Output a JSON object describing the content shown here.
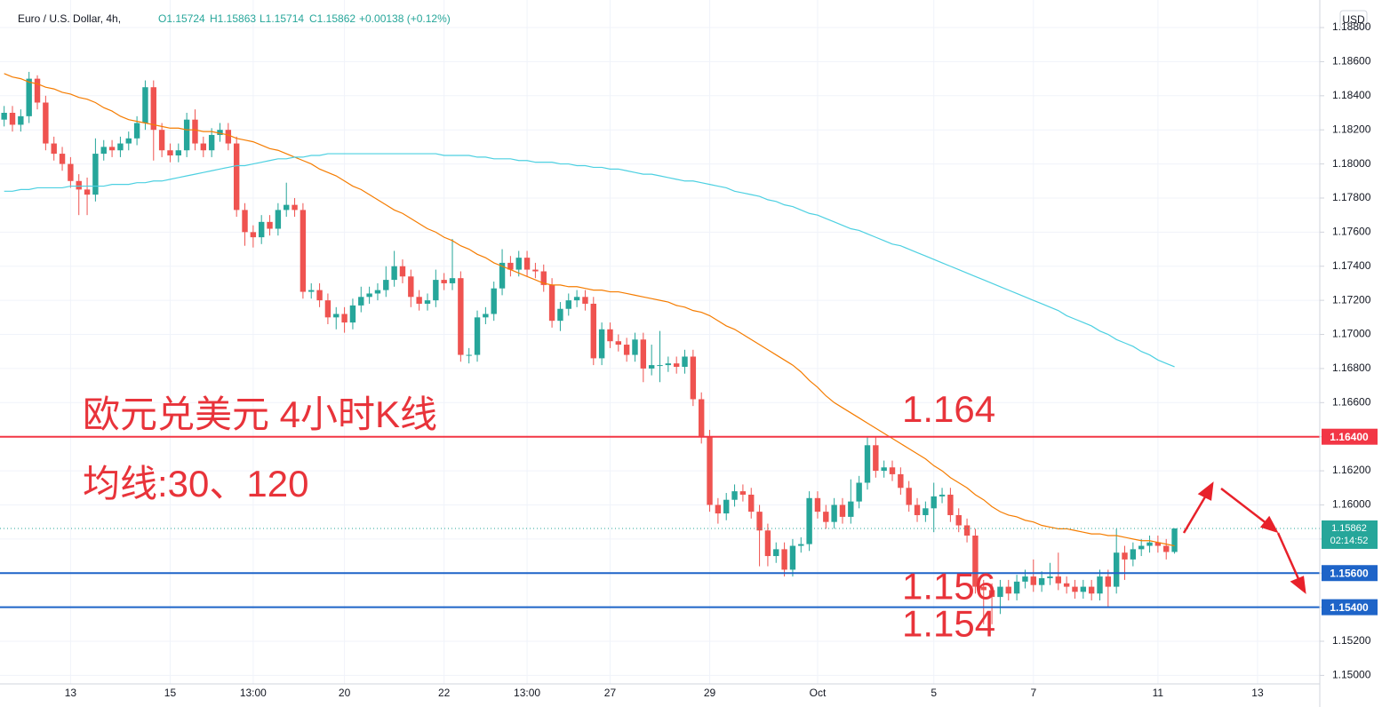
{
  "header": {
    "symbol": "Euro / U.S. Dollar, 4h,",
    "open": "O1.15724",
    "high": "H1.15863",
    "low": "L1.15714",
    "close": "C1.15862",
    "change": "+0.00138 (+0.12%)",
    "currency": "USD"
  },
  "chart_data": {
    "type": "candlestick",
    "annotations": [
      "欧元兑美元 4小时K线",
      "均线:30、120"
    ],
    "up_color": "#26a69a",
    "down_color": "#ef5350",
    "grid": true,
    "ylim": [
      1.1495,
      1.1892
    ],
    "yticks": [
      {
        "value": 1.15,
        "label": "1.15000"
      },
      {
        "value": 1.152,
        "label": "1.15200"
      },
      {
        "value": 1.154,
        "label": "1.15400"
      },
      {
        "value": 1.156,
        "label": "1.15600"
      },
      {
        "value": 1.158,
        "label": "1.15800"
      },
      {
        "value": 1.16,
        "label": "1.16000"
      },
      {
        "value": 1.162,
        "label": "1.16200"
      },
      {
        "value": 1.164,
        "label": "1.16400"
      },
      {
        "value": 1.166,
        "label": "1.16600"
      },
      {
        "value": 1.168,
        "label": "1.16800"
      },
      {
        "value": 1.17,
        "label": "1.17000"
      },
      {
        "value": 1.172,
        "label": "1.17200"
      },
      {
        "value": 1.174,
        "label": "1.17400"
      },
      {
        "value": 1.176,
        "label": "1.17600"
      },
      {
        "value": 1.178,
        "label": "1.17800"
      },
      {
        "value": 1.18,
        "label": "1.18000"
      },
      {
        "value": 1.182,
        "label": "1.18200"
      },
      {
        "value": 1.184,
        "label": "1.18400"
      },
      {
        "value": 1.186,
        "label": "1.18600"
      },
      {
        "value": 1.188,
        "label": "1.18800"
      }
    ],
    "categories": [
      null,
      null,
      null,
      null,
      null,
      null,
      null,
      null,
      "13",
      null,
      null,
      null,
      null,
      null,
      null,
      null,
      null,
      null,
      null,
      null,
      "15",
      null,
      null,
      null,
      null,
      null,
      null,
      null,
      null,
      null,
      "13:00",
      null,
      null,
      null,
      null,
      null,
      null,
      null,
      null,
      null,
      null,
      "20",
      null,
      null,
      null,
      null,
      null,
      null,
      null,
      null,
      null,
      null,
      null,
      "22",
      null,
      null,
      null,
      null,
      null,
      null,
      null,
      null,
      null,
      "13:00",
      null,
      null,
      null,
      null,
      null,
      null,
      null,
      null,
      null,
      "27",
      null,
      null,
      null,
      null,
      null,
      null,
      null,
      null,
      null,
      null,
      null,
      "29",
      null,
      null,
      null,
      null,
      null,
      null,
      null,
      null,
      null,
      null,
      null,
      null,
      "Oct",
      null,
      null,
      null,
      null,
      null,
      null,
      null,
      null,
      null,
      null,
      null,
      null,
      null,
      "5",
      null,
      null,
      null,
      null,
      null,
      null,
      null,
      null,
      null,
      null,
      null,
      "7",
      null,
      null,
      null,
      null,
      null,
      null,
      null,
      null,
      null,
      null,
      null,
      null,
      null,
      null,
      "11",
      null,
      null,
      null,
      null,
      null,
      null,
      null,
      null,
      null,
      null,
      null,
      "13",
      null,
      null,
      null,
      null,
      null,
      null,
      null
    ],
    "open": [
      1.1826,
      1.183,
      1.1823,
      1.1828,
      1.185,
      1.1836,
      1.1812,
      1.1806,
      1.18,
      1.179,
      1.1785,
      1.1782,
      1.1806,
      1.181,
      1.1808,
      1.1812,
      1.1815,
      1.1824,
      1.1845,
      1.182,
      1.1808,
      1.1805,
      1.1808,
      1.1826,
      1.1812,
      1.1808,
      1.1817,
      1.182,
      1.1812,
      1.1773,
      1.176,
      1.1757,
      1.1766,
      1.1762,
      1.1773,
      1.1776,
      1.1773,
      1.1725,
      1.1726,
      1.172,
      1.171,
      1.1712,
      1.1707,
      1.1717,
      1.1722,
      1.1724,
      1.1726,
      1.1732,
      1.174,
      1.1734,
      1.1722,
      1.1718,
      1.172,
      1.1732,
      1.173,
      1.1733,
      1.1688,
      1.1688,
      1.171,
      1.1712,
      1.1727,
      1.1742,
      1.1738,
      1.1745,
      1.1738,
      1.1737,
      1.1729,
      1.1708,
      1.1715,
      1.172,
      1.1722,
      1.1718,
      1.1686,
      1.1703,
      1.1696,
      1.1694,
      1.1688,
      1.1697,
      1.168,
      1.1682,
      1.1682,
      1.1683,
      1.1681,
      1.1687,
      1.1662,
      1.164,
      1.16,
      1.1595,
      1.1603,
      1.1608,
      1.1606,
      1.1596,
      1.1585,
      1.157,
      1.1574,
      1.1562,
      1.1576,
      1.1577,
      1.1604,
      1.1596,
      1.159,
      1.16,
      1.1593,
      1.1602,
      1.1613,
      1.1635,
      1.162,
      1.1622,
      1.1618,
      1.161,
      1.16,
      1.1594,
      1.1598,
      1.1605,
      1.1606,
      1.1594,
      1.1588,
      1.1582,
      1.1552,
      1.155,
      1.1546,
      1.1552,
      1.1548,
      1.1555,
      1.1558,
      1.1553,
      1.1557,
      1.1558,
      1.1554,
      1.1552,
      1.1549,
      1.1552,
      1.1548,
      1.1558,
      1.1552,
      1.1572,
      1.1568,
      1.1574,
      1.1576,
      1.1578,
      1.1576,
      1.15724,
      null,
      null,
      null,
      null,
      null,
      null,
      null,
      null,
      null,
      null,
      null,
      null,
      null,
      null,
      null,
      null,
      null
    ],
    "high": [
      1.1834,
      1.1834,
      1.1832,
      1.1854,
      1.1852,
      1.184,
      1.1816,
      1.181,
      1.1804,
      1.1794,
      1.1792,
      1.1815,
      1.1814,
      1.1814,
      1.1816,
      1.1819,
      1.1828,
      1.1849,
      1.1849,
      1.1824,
      1.1812,
      1.1812,
      1.183,
      1.1832,
      1.1816,
      1.1821,
      1.1824,
      1.1824,
      1.1816,
      1.1777,
      1.1764,
      1.177,
      1.177,
      1.1777,
      1.1789,
      1.178,
      1.1777,
      1.173,
      1.173,
      1.1724,
      1.1716,
      1.1716,
      1.1721,
      1.1728,
      1.1728,
      1.173,
      1.174,
      1.1749,
      1.1744,
      1.1738,
      1.1726,
      1.1724,
      1.1738,
      1.1736,
      1.1756,
      1.1737,
      1.1692,
      1.1714,
      1.1716,
      1.1731,
      1.175,
      1.1746,
      1.1749,
      1.1749,
      1.1742,
      1.1741,
      1.1733,
      1.1719,
      1.1724,
      1.1726,
      1.1726,
      1.1722,
      1.1707,
      1.1707,
      1.17,
      1.1698,
      1.1701,
      1.1701,
      1.1694,
      1.1702,
      1.1687,
      1.1687,
      1.1691,
      1.1691,
      1.1666,
      1.1644,
      1.1604,
      1.1607,
      1.1612,
      1.1612,
      1.161,
      1.16,
      1.1589,
      1.1578,
      1.1578,
      1.158,
      1.1581,
      1.1608,
      1.1608,
      1.16,
      1.1604,
      1.1604,
      1.1615,
      1.1617,
      1.164,
      1.164,
      1.1626,
      1.1626,
      1.1622,
      1.1614,
      1.1604,
      1.1602,
      1.1613,
      1.161,
      1.161,
      1.1598,
      1.1592,
      1.1586,
      1.1556,
      1.1554,
      1.1556,
      1.1556,
      1.1559,
      1.1562,
      1.1568,
      1.1561,
      1.1566,
      1.1572,
      1.1558,
      1.1556,
      1.1556,
      1.1556,
      1.1562,
      1.1562,
      1.1586,
      1.1576,
      1.1578,
      1.158,
      1.1582,
      1.1582,
      1.158,
      1.15863,
      null,
      null,
      null,
      null,
      null,
      null,
      null,
      null,
      null,
      null,
      null,
      null,
      null,
      null,
      null,
      null,
      null
    ],
    "low": [
      1.1822,
      1.1819,
      1.1819,
      1.1824,
      1.1832,
      1.1808,
      1.1802,
      1.1796,
      1.1786,
      1.177,
      1.177,
      1.1778,
      1.1802,
      1.1804,
      1.1804,
      1.1808,
      1.1811,
      1.182,
      1.1802,
      1.1804,
      1.1801,
      1.1801,
      1.1804,
      1.1808,
      1.1804,
      1.1804,
      1.1813,
      1.1808,
      1.1769,
      1.1752,
      1.1751,
      1.1753,
      1.1758,
      1.1758,
      1.1769,
      1.1769,
      1.1721,
      1.1721,
      1.1716,
      1.1706,
      1.1703,
      1.1701,
      1.1703,
      1.1713,
      1.1718,
      1.172,
      1.1722,
      1.1728,
      1.173,
      1.1716,
      1.1714,
      1.1714,
      1.1716,
      1.1726,
      1.1726,
      1.1684,
      1.1683,
      1.1684,
      1.1706,
      1.1708,
      1.1723,
      1.1734,
      1.1734,
      1.1734,
      1.1733,
      1.1725,
      1.1704,
      1.1702,
      1.1711,
      1.1716,
      1.1714,
      1.1682,
      1.1682,
      1.1692,
      1.169,
      1.1684,
      1.1684,
      1.1672,
      1.1676,
      1.1672,
      1.1678,
      1.1677,
      1.1677,
      1.1658,
      1.1636,
      1.1596,
      1.1589,
      1.1591,
      1.1599,
      1.1602,
      1.1592,
      1.1564,
      1.1564,
      1.1566,
      1.1558,
      1.1558,
      1.1572,
      1.1573,
      1.1592,
      1.1586,
      1.1586,
      1.1589,
      1.1589,
      1.1598,
      1.1609,
      1.1616,
      1.1616,
      1.1614,
      1.1606,
      1.1596,
      1.159,
      1.159,
      1.1584,
      1.1601,
      1.159,
      1.1584,
      1.1578,
      1.1548,
      1.153,
      1.153,
      1.1536,
      1.1544,
      1.1544,
      1.1551,
      1.1549,
      1.1549,
      1.1553,
      1.155,
      1.1548,
      1.1545,
      1.1545,
      1.1544,
      1.1544,
      1.154,
      1.1548,
      1.1556,
      1.1564,
      1.157,
      1.1572,
      1.1572,
      1.1568,
      1.15714,
      null,
      null,
      null,
      null,
      null,
      null,
      null,
      null,
      null,
      null,
      null,
      null,
      null,
      null,
      null,
      null,
      null
    ],
    "close": [
      1.183,
      1.1823,
      1.1828,
      1.185,
      1.1836,
      1.1812,
      1.1806,
      1.18,
      1.179,
      1.1785,
      1.1782,
      1.1806,
      1.181,
      1.1808,
      1.1812,
      1.1815,
      1.1824,
      1.1845,
      1.182,
      1.1808,
      1.1805,
      1.1808,
      1.1826,
      1.1812,
      1.1808,
      1.1817,
      1.182,
      1.1812,
      1.1773,
      1.176,
      1.1757,
      1.1766,
      1.1762,
      1.1773,
      1.1776,
      1.1773,
      1.1725,
      1.1726,
      1.172,
      1.171,
      1.1712,
      1.1707,
      1.1717,
      1.1722,
      1.1724,
      1.1726,
      1.1732,
      1.174,
      1.1734,
      1.1722,
      1.1718,
      1.172,
      1.1732,
      1.173,
      1.1733,
      1.1688,
      1.1688,
      1.171,
      1.1712,
      1.1727,
      1.1742,
      1.1738,
      1.1745,
      1.1738,
      1.1737,
      1.1729,
      1.1708,
      1.1715,
      1.172,
      1.1722,
      1.1718,
      1.1686,
      1.1703,
      1.1696,
      1.1694,
      1.1688,
      1.1697,
      1.168,
      1.1682,
      1.1682,
      1.1683,
      1.1681,
      1.1687,
      1.1662,
      1.164,
      1.16,
      1.1595,
      1.1603,
      1.1608,
      1.1606,
      1.1596,
      1.1585,
      1.157,
      1.1574,
      1.1562,
      1.1576,
      1.1577,
      1.1604,
      1.1596,
      1.159,
      1.16,
      1.1593,
      1.1602,
      1.1613,
      1.1635,
      1.162,
      1.1622,
      1.1618,
      1.161,
      1.16,
      1.1594,
      1.1598,
      1.1605,
      1.1606,
      1.1594,
      1.1588,
      1.1582,
      1.1552,
      1.155,
      1.1546,
      1.1552,
      1.1548,
      1.1555,
      1.1558,
      1.1553,
      1.1557,
      1.1558,
      1.1554,
      1.1552,
      1.1549,
      1.1552,
      1.1548,
      1.1558,
      1.1552,
      1.1572,
      1.1568,
      1.1574,
      1.1576,
      1.1578,
      1.1576,
      1.15724,
      1.15862,
      null,
      null,
      null,
      null,
      null,
      null,
      null,
      null,
      null,
      null,
      null,
      null,
      null,
      null,
      null,
      null,
      null
    ],
    "series": [
      {
        "color": "#f57c00",
        "values": [
          1.1853,
          1.1851,
          1.185,
          1.1848,
          1.1847,
          1.1845,
          1.1844,
          1.1842,
          1.1841,
          1.1839,
          1.1838,
          1.1836,
          1.1833,
          1.1831,
          1.1828,
          1.1826,
          1.1825,
          1.1824,
          1.1823,
          1.1822,
          1.1821,
          1.1821,
          1.182,
          1.182,
          1.1819,
          1.1819,
          1.1818,
          1.1817,
          1.1815,
          1.1814,
          1.1813,
          1.1811,
          1.1809,
          1.1808,
          1.1806,
          1.1804,
          1.1802,
          1.18,
          1.1797,
          1.1795,
          1.1793,
          1.179,
          1.1787,
          1.1785,
          1.1782,
          1.1779,
          1.1776,
          1.1773,
          1.1771,
          1.1768,
          1.1765,
          1.1762,
          1.176,
          1.1757,
          1.1755,
          1.1752,
          1.175,
          1.1747,
          1.1745,
          1.1742,
          1.174,
          1.1738,
          1.1736,
          1.1734,
          1.1732,
          1.173,
          1.1729,
          1.1729,
          1.1728,
          1.1728,
          1.1727,
          1.1726,
          1.1726,
          1.1725,
          1.1725,
          1.1724,
          1.1723,
          1.1722,
          1.1721,
          1.172,
          1.1719,
          1.1717,
          1.1716,
          1.1714,
          1.1713,
          1.1711,
          1.1708,
          1.1705,
          1.1703,
          1.17,
          1.1697,
          1.1694,
          1.1691,
          1.1688,
          1.1685,
          1.1682,
          1.1678,
          1.1673,
          1.1669,
          1.1664,
          1.166,
          1.1657,
          1.1654,
          1.1651,
          1.1648,
          1.1645,
          1.1642,
          1.1639,
          1.1636,
          1.1633,
          1.163,
          1.1627,
          1.1623,
          1.162,
          1.1616,
          1.1613,
          1.161,
          1.1606,
          1.1603,
          1.1599,
          1.1596,
          1.1594,
          1.1593,
          1.1591,
          1.159,
          1.1588,
          1.1587,
          1.1586,
          1.1586,
          1.1585,
          1.1584,
          1.1583,
          1.1583,
          1.1582,
          1.1582,
          1.1581,
          1.158,
          1.1579,
          1.1579,
          1.1578,
          1.1577,
          1.1576,
          null,
          null,
          null,
          null,
          null,
          null,
          null,
          null,
          null,
          null,
          null,
          null,
          null,
          null,
          null,
          null,
          null
        ]
      },
      {
        "color": "#4dd0e1",
        "values": [
          1.1784,
          1.1784,
          1.1785,
          1.1785,
          1.1786,
          1.1786,
          1.1786,
          1.1786,
          1.1787,
          1.1787,
          1.1787,
          1.1787,
          1.1787,
          1.1788,
          1.1788,
          1.1788,
          1.1789,
          1.1789,
          1.179,
          1.179,
          1.1791,
          1.1792,
          1.1793,
          1.1794,
          1.1795,
          1.1796,
          1.1797,
          1.1798,
          1.1799,
          1.1799,
          1.18,
          1.1801,
          1.1802,
          1.1803,
          1.1803,
          1.1804,
          1.1804,
          1.1805,
          1.1805,
          1.1806,
          1.1806,
          1.1806,
          1.1806,
          1.1806,
          1.1806,
          1.1806,
          1.1806,
          1.1806,
          1.1806,
          1.1806,
          1.1806,
          1.1806,
          1.1806,
          1.1805,
          1.1805,
          1.1805,
          1.1805,
          1.1804,
          1.1804,
          1.1803,
          1.1803,
          1.1803,
          1.1802,
          1.1802,
          1.1801,
          1.1801,
          1.1801,
          1.18,
          1.18,
          1.1799,
          1.1799,
          1.1798,
          1.1798,
          1.1797,
          1.1797,
          1.1796,
          1.1795,
          1.1794,
          1.1794,
          1.1793,
          1.1792,
          1.1791,
          1.179,
          1.179,
          1.1789,
          1.1788,
          1.1787,
          1.1786,
          1.1784,
          1.1783,
          1.1782,
          1.1781,
          1.1779,
          1.1778,
          1.1776,
          1.1775,
          1.1773,
          1.1771,
          1.177,
          1.1768,
          1.1766,
          1.1764,
          1.1762,
          1.1761,
          1.1759,
          1.1757,
          1.1755,
          1.1753,
          1.1752,
          1.175,
          1.1748,
          1.1746,
          1.1744,
          1.1742,
          1.174,
          1.1738,
          1.1736,
          1.1734,
          1.1732,
          1.173,
          1.1728,
          1.1726,
          1.1724,
          1.1722,
          1.172,
          1.1718,
          1.1716,
          1.1714,
          1.1711,
          1.1709,
          1.1707,
          1.1705,
          1.1702,
          1.17,
          1.1697,
          1.1695,
          1.1693,
          1.169,
          1.1688,
          1.1685,
          1.1683,
          1.1681,
          null,
          null,
          null,
          null,
          null,
          null,
          null,
          null,
          null,
          null,
          null,
          null,
          null,
          null,
          null,
          null,
          null
        ]
      }
    ],
    "levels": [
      {
        "value": 1.164,
        "label": "1.16400",
        "text": "1.164",
        "color": "#f23645"
      },
      {
        "value": 1.156,
        "label": "1.15600",
        "text": "1.156",
        "color": "#1e64c8"
      },
      {
        "value": 1.154,
        "label": "1.15400",
        "text": "1.154",
        "color": "#1e64c8"
      }
    ],
    "last_price": {
      "value": 1.15862,
      "countdown": "02:14:52",
      "color": "#26a69a"
    }
  }
}
